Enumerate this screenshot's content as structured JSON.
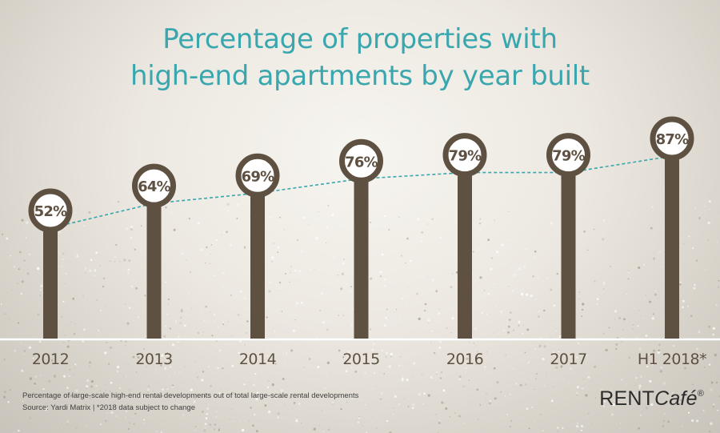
{
  "title": {
    "line1": "Percentage of properties with",
    "line2": "high-end apartments by year built"
  },
  "chart_data": {
    "type": "line",
    "categories": [
      "2012",
      "2013",
      "2014",
      "2015",
      "2016",
      "2017",
      "H1 2018*"
    ],
    "values": [
      52,
      64,
      69,
      76,
      79,
      79,
      87
    ],
    "value_labels": [
      "52%",
      "64%",
      "69%",
      "76%",
      "79%",
      "79%",
      "87%"
    ],
    "title": "Percentage of properties with high-end apartments by year built",
    "xlabel": "",
    "ylabel": "",
    "grid": false,
    "colors": {
      "pin": "#5e5142",
      "circle_fill": "#ffffff",
      "trend_line": "#3aa6ae",
      "baseline": "#ffffff"
    }
  },
  "footnote": {
    "line1": "Percentage of large-scale high-end rental developments out of total large-scale rental developments",
    "line2": "Source: Yardi Matrix  |  *2018 data subject to change"
  },
  "brand": {
    "part1": "RENT",
    "part2": "Café",
    "mark": "®"
  }
}
